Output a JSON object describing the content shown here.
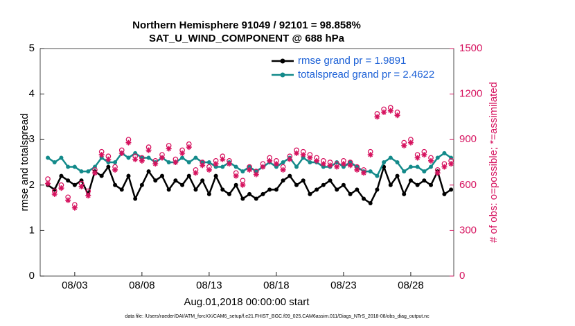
{
  "chart_data": {
    "type": "line",
    "title": "Northern Hemisphere 91049 / 92101 = 98.858%",
    "subtitle": "SAT_U_WIND_COMPONENT @ 688 hPa",
    "x_label": "Aug.01,2018 00:00:00 start",
    "y_label": "rmse and totalspread",
    "y2_label": "# of obs: o=possible; *=assimilated",
    "footnote": "data file: /Users/raeder/DAI/ATM_forcXX/CAM6_setup/f.e21.FHIST_BGC.f09_025.CAM6assim.011/Diags_NTrS_2018-08/obs_diag_output.nc",
    "x": [
      0,
      0.5,
      1,
      1.5,
      2,
      2.5,
      3,
      3.5,
      4,
      4.5,
      5,
      5.5,
      6,
      6.5,
      7,
      7.5,
      8,
      8.5,
      9,
      9.5,
      10,
      10.5,
      11,
      11.5,
      12,
      12.5,
      13,
      13.5,
      14,
      14.5,
      15,
      15.5,
      16,
      16.5,
      17,
      17.5,
      18,
      18.5,
      19,
      19.5,
      20,
      20.5,
      21,
      21.5,
      22,
      22.5,
      23,
      23.5,
      24,
      24.5,
      25,
      25.5,
      26,
      26.5,
      27,
      27.5,
      28,
      28.5,
      29,
      29.5,
      30
    ],
    "xlim": [
      -0.57,
      30.2
    ],
    "xticks": [
      {
        "value": 2,
        "label": "08/03"
      },
      {
        "value": 7,
        "label": "08/08"
      },
      {
        "value": 12,
        "label": "08/13"
      },
      {
        "value": 17,
        "label": "08/18"
      },
      {
        "value": 22,
        "label": "08/23"
      },
      {
        "value": 27,
        "label": "08/28"
      }
    ],
    "ylim": [
      0,
      5
    ],
    "yticks": [
      0,
      1,
      2,
      3,
      4,
      5
    ],
    "y2lim": [
      0,
      1500
    ],
    "y2ticks": [
      0,
      300,
      600,
      900,
      1200,
      1500
    ],
    "y2_color": "#d6135f",
    "series": [
      {
        "name": "rmse grand pr = 1.9891",
        "color": "#000000",
        "marker": "dot",
        "values": [
          2.0,
          1.9,
          2.2,
          2.1,
          2.0,
          2.1,
          1.8,
          2.3,
          2.2,
          2.4,
          2.0,
          1.9,
          2.2,
          1.7,
          2.0,
          2.3,
          2.1,
          2.2,
          1.9,
          2.1,
          2.0,
          2.2,
          1.9,
          2.1,
          1.8,
          2.2,
          1.9,
          1.8,
          2.0,
          1.7,
          1.8,
          1.7,
          1.8,
          1.9,
          1.9,
          2.1,
          2.2,
          2.0,
          2.1,
          1.8,
          1.9,
          2.0,
          2.1,
          1.9,
          2.0,
          1.8,
          1.9,
          1.7,
          1.6,
          1.9,
          2.4,
          2.0,
          2.2,
          1.8,
          2.1,
          2.0,
          2.1,
          2.0,
          2.3,
          1.8,
          1.9
        ]
      },
      {
        "name": "totalspread grand pr = 2.4622",
        "color": "#138a8a",
        "marker": "dot",
        "values": [
          2.6,
          2.5,
          2.6,
          2.4,
          2.4,
          2.3,
          2.3,
          2.4,
          2.6,
          2.5,
          2.5,
          2.7,
          2.6,
          2.7,
          2.6,
          2.6,
          2.5,
          2.6,
          2.5,
          2.5,
          2.6,
          2.5,
          2.6,
          2.5,
          2.5,
          2.4,
          2.4,
          2.5,
          2.4,
          2.3,
          2.4,
          2.3,
          2.4,
          2.5,
          2.4,
          2.5,
          2.6,
          2.4,
          2.6,
          2.5,
          2.5,
          2.4,
          2.4,
          2.5,
          2.4,
          2.5,
          2.4,
          2.3,
          2.3,
          2.2,
          2.5,
          2.6,
          2.5,
          2.3,
          2.4,
          2.4,
          2.3,
          2.4,
          2.6,
          2.7,
          2.6
        ]
      },
      {
        "color": "#d6135f",
        "marker": "circle",
        "axis": "y2",
        "values": [
          640,
          560,
          600,
          520,
          470,
          610,
          560,
          700,
          820,
          790,
          720,
          830,
          900,
          790,
          780,
          850,
          760,
          800,
          860,
          770,
          830,
          870,
          700,
          750,
          720,
          760,
          790,
          760,
          680,
          630,
          720,
          690,
          740,
          780,
          760,
          720,
          790,
          830,
          820,
          800,
          780,
          760,
          750,
          740,
          760,
          750,
          720,
          700,
          820,
          1070,
          1100,
          1110,
          1080,
          880,
          900,
          800,
          820,
          780,
          700,
          740,
          760
        ]
      },
      {
        "color": "#d6135f",
        "marker": "star",
        "axis": "y2",
        "values": [
          610,
          540,
          580,
          500,
          450,
          590,
          530,
          680,
          800,
          770,
          700,
          810,
          880,
          770,
          760,
          830,
          740,
          780,
          840,
          750,
          810,
          850,
          680,
          730,
          700,
          740,
          770,
          740,
          660,
          600,
          700,
          670,
          720,
          760,
          740,
          700,
          770,
          810,
          800,
          780,
          760,
          740,
          730,
          720,
          740,
          730,
          700,
          680,
          800,
          1050,
          1080,
          1090,
          1060,
          860,
          880,
          780,
          800,
          760,
          680,
          720,
          740
        ]
      }
    ]
  }
}
